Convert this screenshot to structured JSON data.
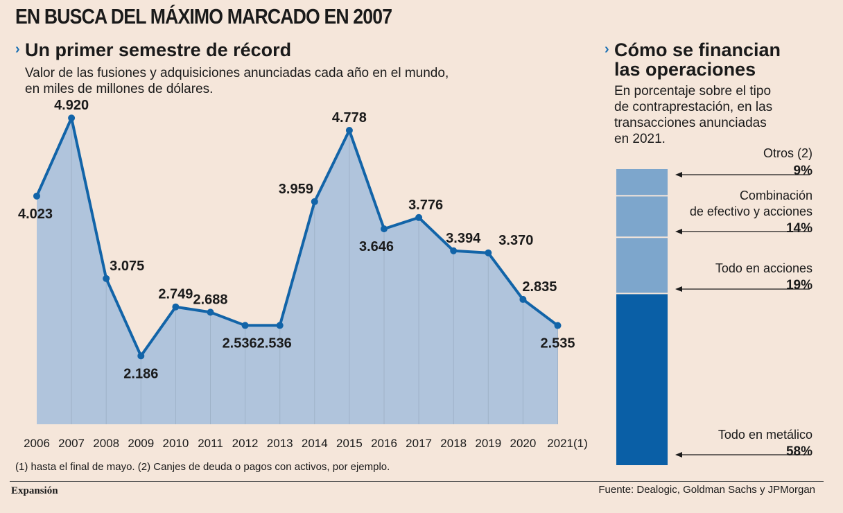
{
  "main_title": "EN BUSCA DEL MÁXIMO MARCADO EN 2007",
  "left": {
    "title": "Un primer semestre de récord",
    "subtitle_line1": "Valor de las fusiones y adquisiciones anunciadas cada año en el mundo,",
    "subtitle_line2": "en miles de millones de dólares."
  },
  "right": {
    "title_line1": "Cómo se financian",
    "title_line2": "las operaciones",
    "subtitle_line1": "En porcentaje sobre el tipo",
    "subtitle_line2": "de contraprestación, en las",
    "subtitle_line3": "transacciones anunciadas",
    "subtitle_line4": "en 2021."
  },
  "chart_data": [
    {
      "type": "area",
      "categories": [
        "2006",
        "2007",
        "2008",
        "2009",
        "2010",
        "2011",
        "2012",
        "2013",
        "2014",
        "2015",
        "2016",
        "2017",
        "2018",
        "2019",
        "2020",
        "2021(1)"
      ],
      "values": [
        4023,
        4920,
        3075,
        2186,
        2749,
        2688,
        2536,
        2536,
        3959,
        4778,
        3646,
        3776,
        3394,
        3370,
        2835,
        2535
      ],
      "labels": [
        "4.023",
        "4.920",
        "3.075",
        "2.186",
        "2.749",
        "2.688",
        "2.536",
        "2.536",
        "3.959",
        "4.778",
        "3.646",
        "3.776",
        "3.394",
        "3.370",
        "2.835",
        "2.535"
      ],
      "title": "Un primer semestre de récord",
      "colors": {
        "line": "#1264a8",
        "fill": "#b0c4dc"
      }
    },
    {
      "type": "bar",
      "stacked": true,
      "segments": [
        {
          "name": "Otros (2)",
          "value": 9,
          "label": "9%",
          "color": "#7da6cc"
        },
        {
          "name": "Combinación de efectivo y acciones",
          "value": 14,
          "label": "14%",
          "color": "#7da6cc"
        },
        {
          "name": "Todo en acciones",
          "value": 19,
          "label": "19%",
          "color": "#7da6cc"
        },
        {
          "name": "Todo en metálico",
          "value": 58,
          "label": "58%",
          "color": "#0a5fa6"
        }
      ],
      "title": "Cómo se financian las operaciones"
    }
  ],
  "bar_labels": {
    "otros": "Otros (2)",
    "combinacion_1": "Combinación",
    "combinacion_2": "de efectivo y acciones",
    "acciones": "Todo en acciones",
    "metalico": "Todo en metálico"
  },
  "footnote": "(1) hasta el final de mayo. (2) Canjes de deuda o pagos con activos, por ejemplo.",
  "logo": "Expansión",
  "source": "Fuente: Dealogic, Goldman Sachs y JPMorgan"
}
